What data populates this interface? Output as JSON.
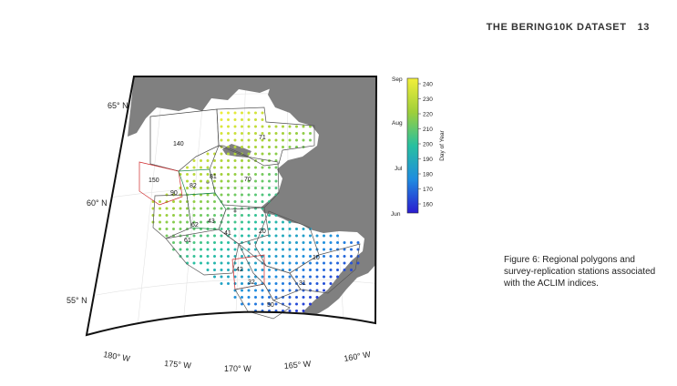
{
  "header": {
    "title": "THE BERING10K DATASET",
    "page": "13"
  },
  "caption": "Figure 6: Regional polygons and survey-replication stations associated with the ACLIM indices.",
  "colorbar": {
    "title": "Day of Year",
    "ticks": [
      "240",
      "230",
      "220",
      "210",
      "200",
      "190",
      "180",
      "170",
      "160"
    ],
    "months": [
      "Sep",
      "Aug",
      "Jul",
      "Jun"
    ]
  },
  "axes": {
    "lat": [
      "65° N",
      "60° N",
      "55° N"
    ],
    "lon": [
      "180° W",
      "175° W",
      "170° W",
      "165° W",
      "160° W"
    ]
  },
  "regions": [
    "140",
    "71",
    "150",
    "82",
    "81",
    "70",
    "90",
    "62",
    "43",
    "41",
    "20",
    "61",
    "10",
    "42",
    "32",
    "31",
    "50"
  ],
  "colors": {
    "land": "#808080",
    "coast_border": "#555555",
    "red_polygon": "#d0292b"
  }
}
